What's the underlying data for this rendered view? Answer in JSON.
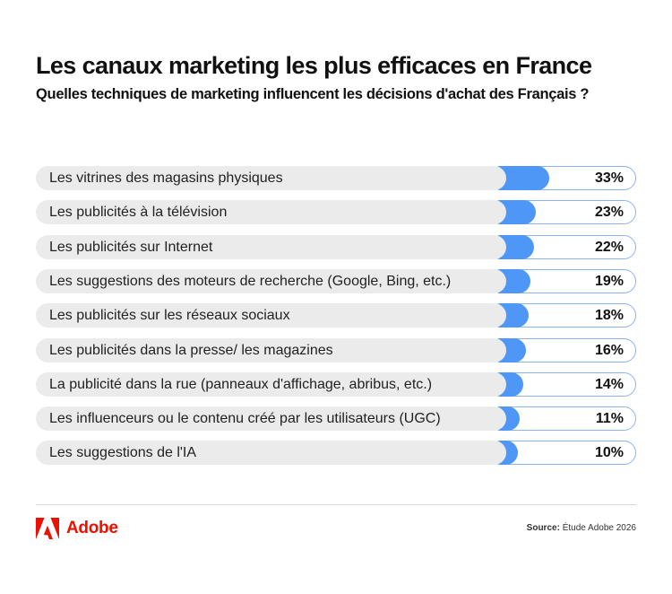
{
  "header": {
    "title": "Les canaux marketing les plus efficaces en France",
    "subtitle": "Quelles techniques de marketing influencent les décisions d'achat des Français ?"
  },
  "colors": {
    "bar_fill": "#4e97f6",
    "track_border": "#8fb4ea",
    "label_pill": "#ebebeb",
    "brand_red": "#eb1000"
  },
  "chart_data": {
    "type": "bar",
    "orientation": "horizontal",
    "title": "Les canaux marketing les plus efficaces en France",
    "subtitle": "Quelles techniques de marketing influencent les décisions d'achat des Français ?",
    "categories": [
      "Les vitrines des magasins physiques",
      "Les publicités à la télévision",
      "Les publicités sur Internet",
      "Les suggestions des moteurs de recherche (Google, Bing, etc.)",
      "Les publicités sur les réseaux sociaux",
      "Les publicités dans la presse/ les magazines",
      "La publicité dans la rue (panneaux d'affichage, abribus, etc.)",
      "Les influenceurs ou le contenu créé par les utilisateurs (UGC)",
      "Les suggestions de l'IA"
    ],
    "values": [
      33,
      23,
      22,
      19,
      18,
      16,
      14,
      11,
      10
    ],
    "value_labels": [
      "33%",
      "23%",
      "22%",
      "19%",
      "18%",
      "16%",
      "14%",
      "11%",
      "10%"
    ],
    "unit": "%",
    "xlabel": "",
    "ylabel": "",
    "grid": false,
    "legend": "none"
  },
  "footer": {
    "brand": "Adobe",
    "source_label": "Source:",
    "source_text": "Étude Adobe 2026"
  }
}
